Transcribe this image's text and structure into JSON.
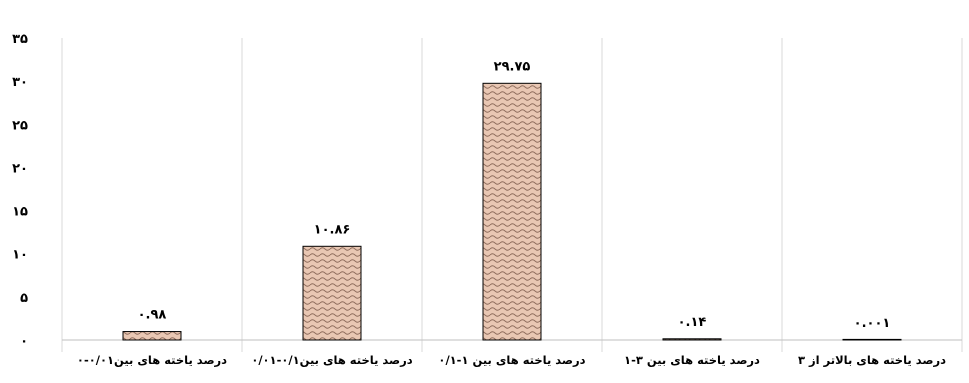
{
  "chart_data": {
    "type": "bar",
    "title": "",
    "xlabel": "",
    "ylabel": "",
    "ylim": [
      0,
      35
    ],
    "y_tick_step": 5,
    "y_tick_labels": [
      "۰",
      "۵",
      "۱۰",
      "۱۵",
      "۲۰",
      "۲۵",
      "۳۰",
      "۳۵"
    ],
    "grid": "vertical-category-separators",
    "categories": [
      "درصد یاخته های بالاتر از ۳",
      "درصد یاخته های بین ۳-۱",
      "درصد یاخته های بین ۱-۰/۱",
      "درصد یاخته های بین۰/۱-۰/۰۱",
      "درصد یاخته های بین۰/۰۱-۰"
    ],
    "values": [
      0.001,
      0.14,
      29.75,
      10.86,
      0.98
    ],
    "data_labels": [
      "۰.۰۰۱",
      "۰.۱۴",
      "۲۹.۷۵",
      "۱۰.۸۶",
      "۰.۹۸"
    ],
    "bar_fill": "#e8c4b0",
    "bar_pattern_stroke": "#8a6a5a",
    "bar_outline": "#000000"
  }
}
